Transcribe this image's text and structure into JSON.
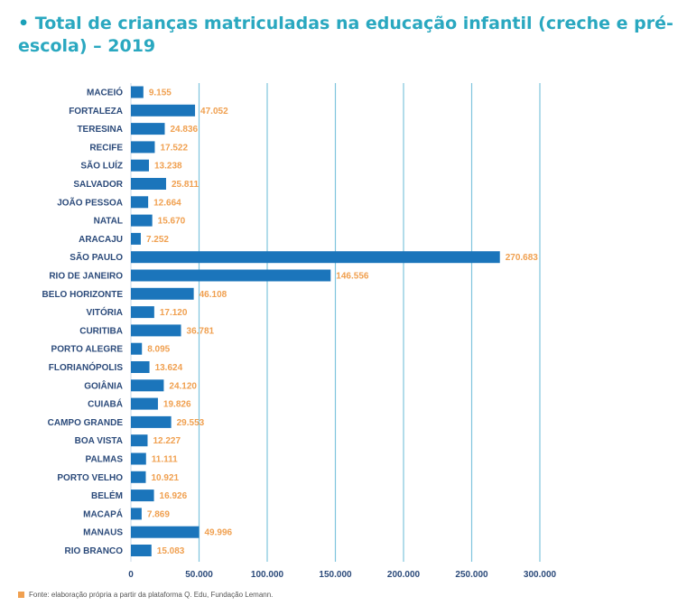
{
  "title": {
    "bullet": "•",
    "text": "Total de crianças matriculadas na educação infantil (creche e pré-escola) – 2019"
  },
  "chart_data": {
    "type": "bar",
    "orientation": "horizontal",
    "title": "Total de crianças matriculadas na educação infantil (creche e pré-escola) – 2019",
    "xlabel": "",
    "ylabel": "",
    "xlim": [
      0,
      300000
    ],
    "ticks": [
      0,
      50000,
      100000,
      150000,
      200000,
      250000,
      300000
    ],
    "tick_labels": [
      "0",
      "50.000",
      "100.000",
      "150.000",
      "200.000",
      "250.000",
      "300.000"
    ],
    "grid": true,
    "categories": [
      "MACEIÓ",
      "FORTALEZA",
      "TERESINA",
      "RECIFE",
      "SÃO LUÍZ",
      "SALVADOR",
      "JOÃO PESSOA",
      "NATAL",
      "ARACAJU",
      "SÃO PAULO",
      "RIO DE JANEIRO",
      "BELO HORIZONTE",
      "VITÓRIA",
      "CURITIBA",
      "PORTO ALEGRE",
      "FLORIANÓPOLIS",
      "GOIÂNIA",
      "CUIABÁ",
      "CAMPO GRANDE",
      "BOA VISTA",
      "PALMAS",
      "PORTO VELHO",
      "BELÉM",
      "MACAPÁ",
      "MANAUS",
      "RIO BRANCO"
    ],
    "values": [
      9155,
      47052,
      24836,
      17522,
      13238,
      25811,
      12664,
      15670,
      7252,
      270683,
      146556,
      46108,
      17120,
      36781,
      8095,
      13624,
      24120,
      19826,
      29553,
      12227,
      11111,
      10921,
      16926,
      7869,
      49996,
      15083
    ],
    "value_labels": [
      "9.155",
      "47.052",
      "24.836",
      "17.522",
      "13.238",
      "25.811",
      "12.664",
      "15.670",
      "7.252",
      "270.683",
      "146.556",
      "46.108",
      "17.120",
      "36.781",
      "8.095",
      "13.624",
      "24.120",
      "19.826",
      "29.553",
      "12.227",
      "11.111",
      "10.921",
      "16.926",
      "7.869",
      "49.996",
      "15.083"
    ],
    "colors": {
      "bar": "#1b75bb",
      "value_label": "#f0a050",
      "category": "#2b4a7a",
      "grid": "#7fc4dd"
    }
  },
  "source": {
    "text": "Fonte: elaboração própria a partir da plataforma Q. Edu, Fundação Lemann."
  }
}
